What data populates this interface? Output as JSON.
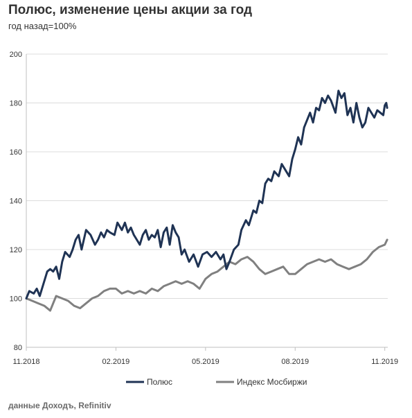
{
  "header": {
    "title": "Полюс, изменение цены акции за год",
    "subtitle": "год назад=100%"
  },
  "footer": {
    "source": "данные Доходъ, Refinitiv"
  },
  "colors": {
    "polyus": "#1f3354",
    "moex": "#808080",
    "grid": "#dcdcdc",
    "axis": "#bfbfbf"
  },
  "chart_data": {
    "type": "line",
    "title": "Полюс, изменение цены акции за год",
    "subtitle": "год назад=100%",
    "xlabel": "",
    "ylabel": "",
    "x_tick_labels": [
      "11.2018",
      "02.2019",
      "05.2019",
      "08.2019",
      "11.2019"
    ],
    "x_tick_pos": [
      0,
      3,
      6,
      9,
      12
    ],
    "xlim": [
      0,
      12.1
    ],
    "ylim": [
      80,
      200
    ],
    "y_ticks": [
      80,
      100,
      120,
      140,
      160,
      180,
      200
    ],
    "grid": "horizontal",
    "legend": "bottom",
    "series": [
      {
        "name": "Полюс",
        "color": "#1f3354",
        "x": [
          0,
          0.1,
          0.25,
          0.35,
          0.45,
          0.55,
          0.7,
          0.8,
          0.9,
          1.0,
          1.1,
          1.2,
          1.3,
          1.45,
          1.55,
          1.65,
          1.75,
          1.85,
          2.0,
          2.15,
          2.3,
          2.4,
          2.5,
          2.6,
          2.7,
          2.8,
          2.95,
          3.05,
          3.2,
          3.3,
          3.4,
          3.5,
          3.6,
          3.7,
          3.8,
          3.9,
          4.0,
          4.1,
          4.2,
          4.3,
          4.4,
          4.5,
          4.6,
          4.7,
          4.8,
          4.9,
          5.0,
          5.1,
          5.2,
          5.3,
          5.45,
          5.6,
          5.75,
          5.9,
          6.05,
          6.2,
          6.35,
          6.5,
          6.6,
          6.7,
          6.8,
          6.95,
          7.1,
          7.2,
          7.35,
          7.45,
          7.6,
          7.7,
          7.8,
          7.9,
          8.0,
          8.1,
          8.2,
          8.3,
          8.45,
          8.55,
          8.65,
          8.8,
          8.9,
          9.0,
          9.1,
          9.2,
          9.3,
          9.4,
          9.5,
          9.6,
          9.7,
          9.8,
          9.9,
          10.0,
          10.1,
          10.2,
          10.35,
          10.45,
          10.55,
          10.65,
          10.75,
          10.85,
          10.95,
          11.05,
          11.15,
          11.25,
          11.35,
          11.45,
          11.55,
          11.65,
          11.75,
          11.85,
          11.95,
          12.0,
          12.05,
          12.08
        ],
        "values": [
          100,
          103,
          102,
          104,
          101,
          105,
          111,
          112,
          111,
          113,
          108,
          115,
          119,
          117,
          120,
          124,
          126,
          120,
          128,
          126,
          122,
          124,
          127,
          125,
          128,
          127,
          126,
          131,
          128,
          131,
          127,
          129,
          126,
          124,
          122,
          126,
          128,
          124,
          126,
          125,
          128,
          121,
          127,
          129,
          122,
          130,
          127,
          125,
          118,
          120,
          115,
          118,
          113,
          118,
          119,
          117,
          119,
          116,
          118,
          112,
          115,
          120,
          122,
          128,
          132,
          130,
          136,
          135,
          140,
          139,
          147,
          149,
          148,
          152,
          150,
          155,
          153,
          150,
          157,
          161,
          166,
          163,
          170,
          173,
          176,
          172,
          178,
          177,
          182,
          180,
          183,
          181,
          176,
          185,
          182,
          184,
          175,
          178,
          172,
          180,
          174,
          170,
          172,
          178,
          176,
          174,
          177,
          176,
          175,
          179,
          180,
          178
        ]
      },
      {
        "name": "Индекс Мосбиржи",
        "color": "#808080",
        "x": [
          0,
          0.2,
          0.4,
          0.6,
          0.8,
          1.0,
          1.2,
          1.4,
          1.6,
          1.8,
          2.0,
          2.2,
          2.4,
          2.6,
          2.8,
          3.0,
          3.2,
          3.4,
          3.6,
          3.8,
          4.0,
          4.2,
          4.4,
          4.6,
          4.8,
          5.0,
          5.2,
          5.4,
          5.6,
          5.8,
          6.0,
          6.2,
          6.4,
          6.6,
          6.8,
          7.0,
          7.2,
          7.4,
          7.6,
          7.8,
          8.0,
          8.2,
          8.4,
          8.6,
          8.8,
          9.0,
          9.2,
          9.4,
          9.6,
          9.8,
          10.0,
          10.2,
          10.4,
          10.6,
          10.8,
          11.0,
          11.2,
          11.4,
          11.6,
          11.8,
          12.0,
          12.08
        ],
        "values": [
          100,
          99,
          98,
          97,
          95,
          101,
          100,
          99,
          97,
          96,
          98,
          100,
          101,
          103,
          104,
          104,
          102,
          103,
          102,
          103,
          102,
          104,
          103,
          105,
          106,
          107,
          106,
          107,
          106,
          104,
          108,
          110,
          111,
          113,
          115,
          114,
          116,
          117,
          115,
          112,
          110,
          111,
          112,
          113,
          110,
          110,
          112,
          114,
          115,
          116,
          115,
          116,
          114,
          113,
          112,
          113,
          114,
          116,
          119,
          121,
          122,
          124
        ]
      }
    ]
  }
}
